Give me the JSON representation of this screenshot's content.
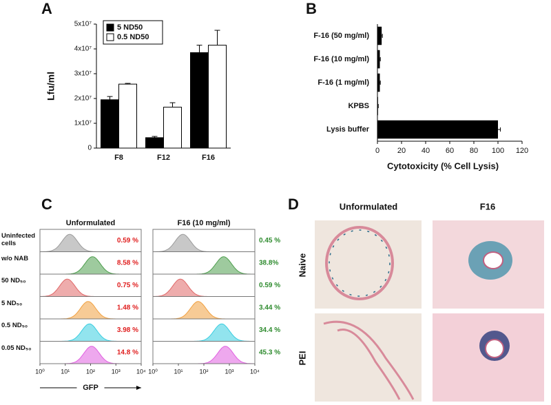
{
  "panels": [
    "A",
    "B",
    "C",
    "D"
  ],
  "chart_data": [
    {
      "type": "bar",
      "ylabel": "Lfu/ml",
      "categories": [
        "F8",
        "F12",
        "F16"
      ],
      "series": [
        {
          "name": "5 ND50",
          "color": "#000000",
          "values": [
            19500000,
            4200000,
            38500000
          ],
          "errors": [
            1300000,
            500000,
            3000000
          ]
        },
        {
          "name": "0.5 ND50",
          "color": "#ffffff",
          "values": [
            25800000,
            16500000,
            41500000
          ],
          "errors": [
            300000,
            1800000,
            6000000
          ]
        }
      ],
      "ylim": [
        0,
        50000000
      ],
      "yticks": [
        0,
        {
          "value": 10000000,
          "label": "1x10⁷"
        },
        {
          "value": 20000000,
          "label": "2x10⁷"
        },
        {
          "value": 30000000,
          "label": "3x10⁷"
        },
        {
          "value": 40000000,
          "label": "4x10⁷"
        },
        {
          "value": 50000000,
          "label": "5x10⁷"
        }
      ],
      "legend": "upper left"
    },
    {
      "type": "barh",
      "xlabel": "Cytotoxicity (% Cell Lysis)",
      "categories": [
        "F-16 (50 mg/ml)",
        "F-16 (10 mg/ml)",
        "F-16 (1 mg/ml)",
        "KPBS",
        "Lysis buffer"
      ],
      "values": [
        3.5,
        2,
        2,
        0.5,
        100
      ],
      "errors": [
        0.6,
        0.4,
        0.4,
        0.2,
        2
      ],
      "color": "#000000",
      "xlim": [
        0,
        120
      ],
      "xticks": [
        0,
        20,
        40,
        60,
        80,
        100,
        120
      ]
    },
    {
      "type": "flow",
      "xlabel": "GFP",
      "log": true,
      "xlim": [
        1,
        10000
      ],
      "xticks": [
        {
          "value": 1,
          "label": "10⁰"
        },
        {
          "value": 10,
          "label": "10¹"
        },
        {
          "value": 100,
          "label": "10²"
        },
        {
          "value": 1000,
          "label": "10³"
        },
        {
          "value": 10000,
          "label": "10⁴"
        }
      ],
      "rows": [
        "Uninfected cells",
        "w/o NAB",
        "50 ND₅₀",
        "5 ND₅₀",
        "0.5 ND₅₀",
        "0.05 ND₅₀"
      ],
      "row_colors": [
        "#9a9a9a",
        "#4e9e4e",
        "#e06868",
        "#f0a040",
        "#38cde0",
        "#e060e0"
      ],
      "columns": [
        {
          "title": "Unformulated",
          "label_color": "#e02020",
          "peaks": [
            15,
            120,
            12,
            80,
            90,
            110
          ],
          "values": [
            0.59,
            8.58,
            0.75,
            1.48,
            3.98,
            14.8
          ],
          "value_labels": [
            "0.59 %",
            "8.58 %",
            "0.75 %",
            "1.48 %",
            "3.98 %",
            "14.8 %"
          ]
        },
        {
          "title": "F16 (10 mg/ml)",
          "label_color": "#2e8b2e",
          "peaks": [
            15,
            600,
            12,
            60,
            500,
            700
          ],
          "values": [
            0.45,
            38.8,
            0.59,
            3.44,
            34.4,
            45.3
          ],
          "value_labels": [
            "0.45 %",
            "38.8%",
            "0.59 %",
            "3.44 %",
            "34.4 %",
            "45.3 %"
          ]
        }
      ]
    }
  ],
  "panel_d": {
    "columns": [
      "Unformulated",
      "F16"
    ],
    "rows": [
      "Naive",
      "PEI"
    ]
  }
}
